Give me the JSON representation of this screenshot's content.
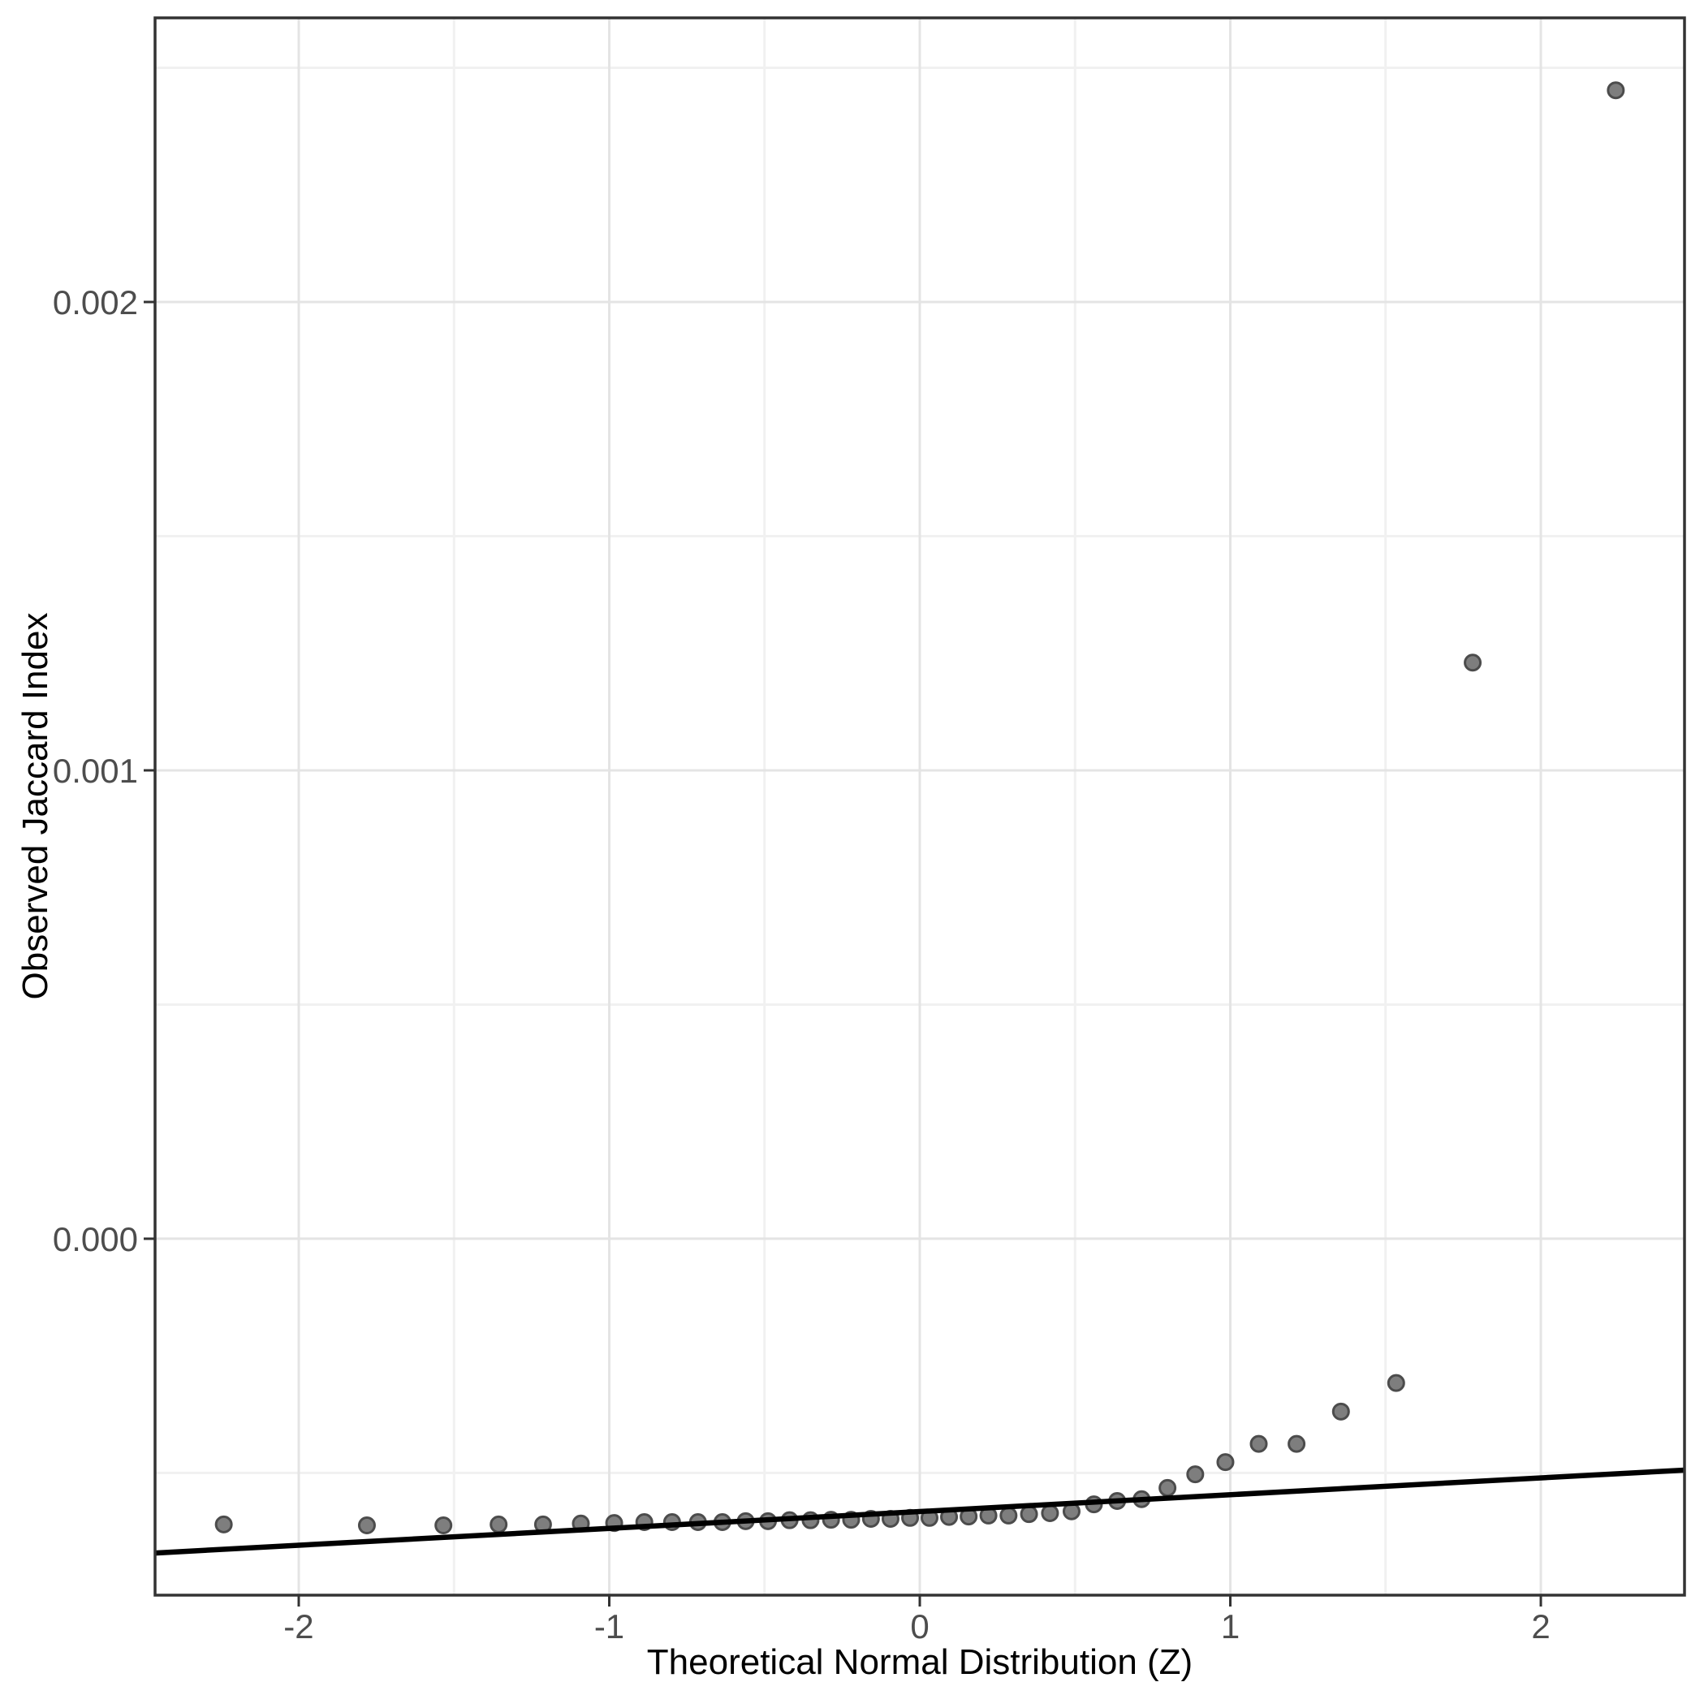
{
  "chart_data": {
    "type": "scatter",
    "subtype": "qq-plot",
    "title": "",
    "xlabel": "Theoretical Normal Distribution (Z)",
    "ylabel": "Observed Jaccard Index",
    "legend": "none",
    "grid": "major+minor",
    "xlim": [
      -2.4627,
      2.4627
    ],
    "ylim": [
      -0.000761,
      0.0026066
    ],
    "x_ticks": {
      "values": [
        -2,
        -1,
        0,
        1,
        2
      ],
      "labels": [
        "-2",
        "-1",
        "0",
        "1",
        "2"
      ]
    },
    "x_minor": [
      -1.5,
      -0.5,
      0.5,
      1.5
    ],
    "y_ticks": {
      "values": [
        0.002,
        0.001,
        0.0
      ],
      "labels": [
        "0.002",
        "0.001",
        "0.000"
      ]
    },
    "y_minor": [
      0.0025,
      0.0015,
      0.0005,
      -0.0005
    ],
    "qq_line": {
      "x1": -2.4627,
      "y1": -0.000671,
      "x2": 2.4627,
      "y2": -0.000494
    },
    "points": [
      [
        -2.2414,
        -0.00061
      ],
      [
        -1.7805,
        -0.000612
      ],
      [
        -1.5341,
        -0.000612
      ],
      [
        -1.3563,
        -0.00061
      ],
      [
        -1.2133,
        -0.00061
      ],
      [
        -1.0915,
        -0.000608
      ],
      [
        -0.9842,
        -0.000607
      ],
      [
        -0.8871,
        -0.000605
      ],
      [
        -0.7977,
        -0.000605
      ],
      [
        -0.7144,
        -0.000605
      ],
      [
        -0.6357,
        -0.000605
      ],
      [
        -0.5607,
        -0.000603
      ],
      [
        -0.4888,
        -0.000603
      ],
      [
        -0.4193,
        -0.000601
      ],
      [
        -0.3518,
        -0.000601
      ],
      [
        -0.2858,
        -0.0006
      ],
      [
        -0.2211,
        -0.0006
      ],
      [
        -0.1573,
        -0.000598
      ],
      [
        -0.0942,
        -0.000598
      ],
      [
        -0.0313,
        -0.000596
      ],
      [
        0.0313,
        -0.000596
      ],
      [
        0.0942,
        -0.000594
      ],
      [
        0.1573,
        -0.000593
      ],
      [
        0.2211,
        -0.000591
      ],
      [
        0.2858,
        -0.000591
      ],
      [
        0.3518,
        -0.000588
      ],
      [
        0.4193,
        -0.000586
      ],
      [
        0.4888,
        -0.000582
      ],
      [
        0.5607,
        -0.000567
      ],
      [
        0.6357,
        -0.00056
      ],
      [
        0.7144,
        -0.000556
      ],
      [
        0.7977,
        -0.000532
      ],
      [
        0.8871,
        -0.000503
      ],
      [
        0.9842,
        -0.000477
      ],
      [
        1.0915,
        -0.000438
      ],
      [
        1.2133,
        -0.000438
      ],
      [
        1.3563,
        -0.000369
      ],
      [
        1.5341,
        -0.000308
      ],
      [
        1.7805,
        0.00123
      ],
      [
        2.2414,
        0.002452
      ]
    ]
  },
  "style": {
    "background": "#ffffff",
    "panel_background": "#ffffff",
    "panel_border": "#333333",
    "grid_major": "#e4e4e4",
    "grid_minor": "#f1f1f1",
    "tick_mark": "#333333",
    "tick_label_color": "#4d4d4d",
    "axis_title_color": "#000000",
    "point_fill": "#7e7e7e",
    "point_stroke": "#4c4c4c",
    "line_color": "#000000"
  }
}
